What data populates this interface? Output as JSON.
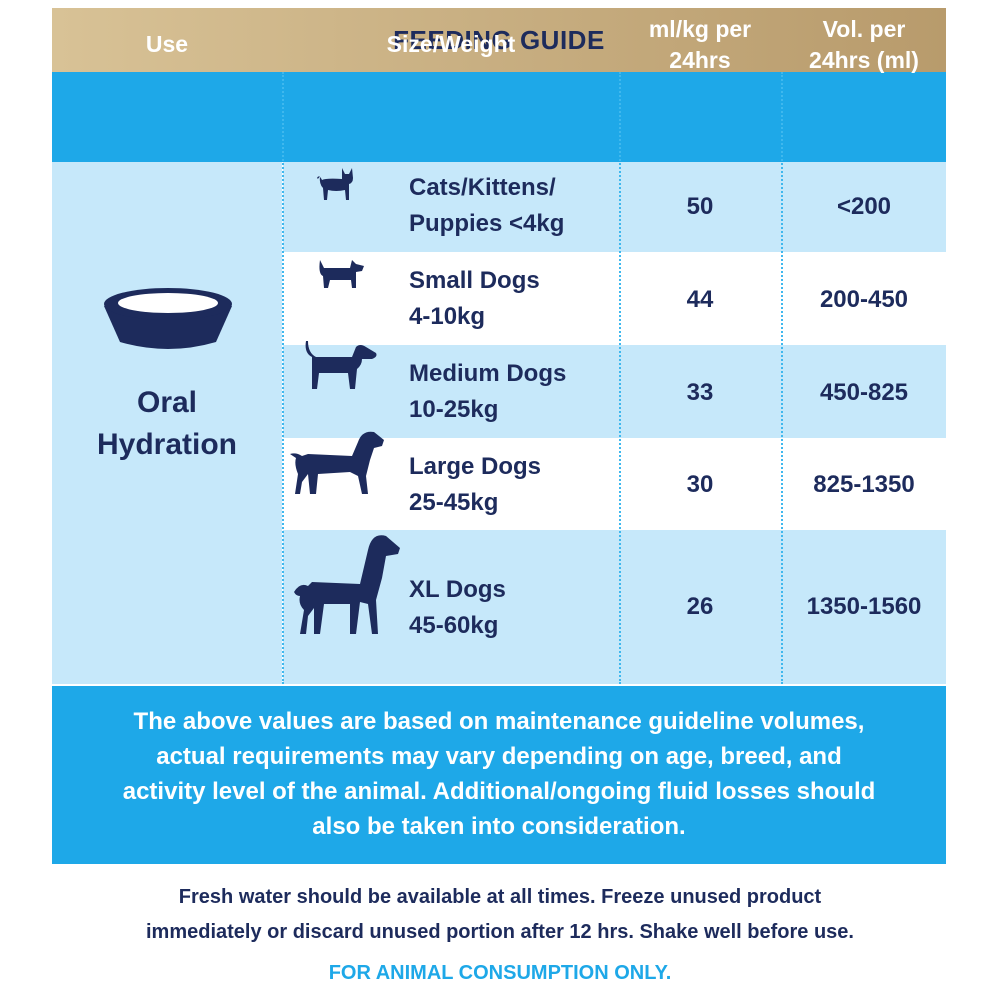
{
  "title": "FEEDING GUIDE",
  "headers": {
    "use": "Use",
    "size": "Size/Weight",
    "rate": "ml/kg per\n24hrs",
    "volume": "Vol. per\n24hrs (ml)"
  },
  "use_label": "Oral\nHydration",
  "rows": [
    {
      "size": "Cats/Kittens/\nPuppies <4kg",
      "rate": "50",
      "volume": "<200",
      "icon": "cat-icon"
    },
    {
      "size": "Small Dogs\n4-10kg",
      "rate": "44",
      "volume": "200-450",
      "icon": "small-dog-icon"
    },
    {
      "size": "Medium Dogs\n10-25kg",
      "rate": "33",
      "volume": "450-825",
      "icon": "medium-dog-icon"
    },
    {
      "size": "Large Dogs\n25-45kg",
      "rate": "30",
      "volume": "825-1350",
      "icon": "large-dog-icon"
    },
    {
      "size": "XL Dogs\n45-60kg",
      "rate": "26",
      "volume": "1350-1560",
      "icon": "xl-dog-icon"
    }
  ],
  "note": "The above values are based on maintenance guideline volumes,\nactual requirements may vary depending on age, breed, and\nactivity level of the animal. Additional/ongoing fluid losses should\nalso be taken into consideration.",
  "footer": "Fresh water should be available at all times. Freeze unused product\nimmediately or discard unused portion after 12 hrs. Shake well before use.",
  "warning": "FOR ANIMAL CONSUMPTION ONLY.",
  "colors": {
    "navy": "#1d2b5c",
    "blue": "#1ea8e8",
    "light_blue": "#c6e8fa",
    "gold": "#c9b083"
  }
}
